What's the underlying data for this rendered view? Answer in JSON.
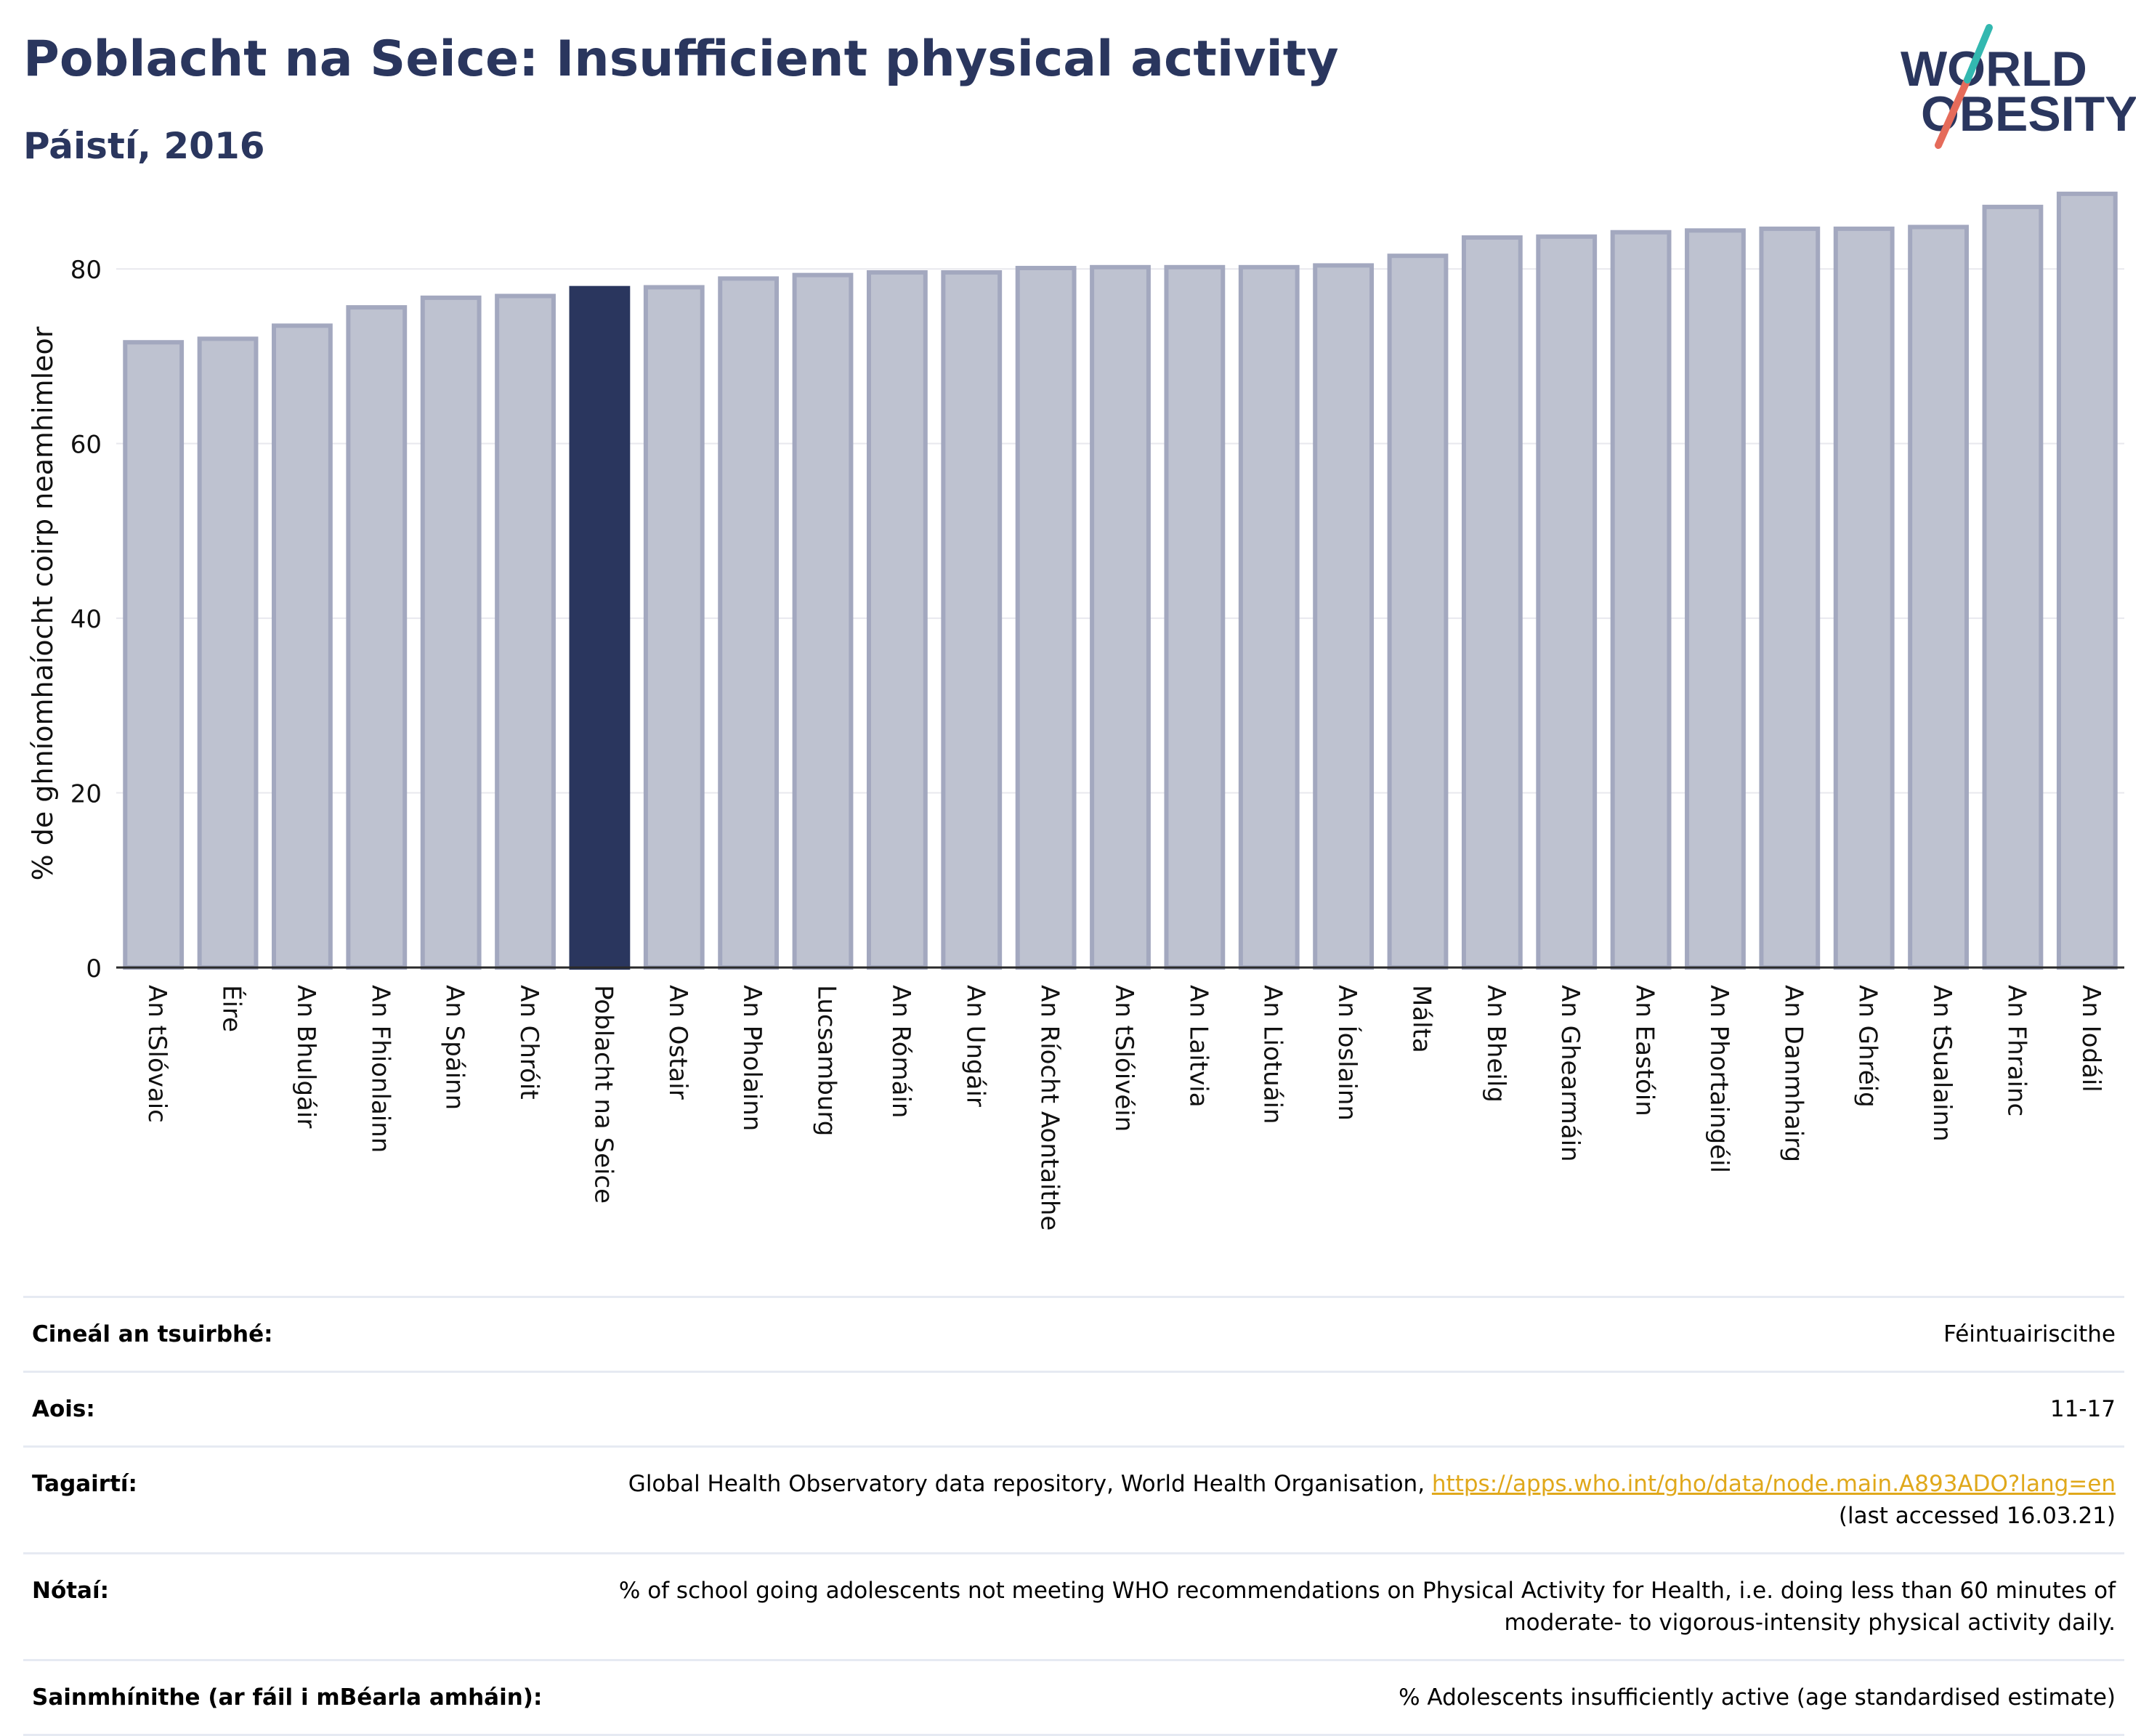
{
  "header": {
    "title": "Poblacht na Seice: Insufficient physical activity",
    "subtitle": "Páistí, 2016"
  },
  "logo": {
    "line1": "WORLD",
    "line2": "OBESITY"
  },
  "colors": {
    "highlight": "#2a365e",
    "bar": "#bec2d0",
    "bar_edge": "#a3a8bf",
    "text_dark": "#2a365e",
    "link": "#e0a81b"
  },
  "chart_data": {
    "type": "bar",
    "ylabel": "% de ghníomhaíocht coirp neamhimleor",
    "ylim": [
      0,
      90
    ],
    "yticks": [
      0,
      20,
      40,
      60,
      80
    ],
    "grid": true,
    "highlight": "Poblacht na Seice",
    "categories": [
      "An tSlóvaic",
      "Éire",
      "An Bhulgáir",
      "An Fhionlainn",
      "An Spáinn",
      "An Chróit",
      "Poblacht na Seice",
      "An Ostair",
      "An Pholainn",
      "Lucsamburg",
      "An Rómáin",
      "An Ungáir",
      "An Ríocht Aontaithe",
      "An tSlóivéin",
      "An Laitvia",
      "An Liotuáin",
      "An Íoslainn",
      "Málta",
      "An Bheilg",
      "An Ghearmáin",
      "An Eastóin",
      "An Phortaingéil",
      "An Danmhairg",
      "An Ghréig",
      "An tSualainn",
      "An Fhrainc",
      "An Iodáil"
    ],
    "values": [
      71.6,
      72.0,
      73.5,
      75.6,
      76.7,
      76.9,
      77.8,
      77.9,
      78.9,
      79.3,
      79.6,
      79.6,
      80.1,
      80.2,
      80.2,
      80.2,
      80.4,
      81.5,
      83.6,
      83.7,
      84.2,
      84.4,
      84.6,
      84.6,
      84.8,
      87.1,
      88.6
    ]
  },
  "info": [
    {
      "key": "Cineál an tsuirbhé:",
      "value": "Féintuairiscithe"
    },
    {
      "key": "Aois:",
      "value": "11-17"
    },
    {
      "key": "Tagairtí:",
      "value": "Global Health Observatory data repository, World Health Organisation,",
      "link": "https://apps.who.int/gho/data/node.main.A893ADO?lang=en",
      "value2": "(last accessed 16.03.21)"
    },
    {
      "key": "Nótaí:",
      "value": "% of school going adolescents not meeting WHO recommendations on Physical Activity for Health, i.e. doing less than 60 minutes of",
      "value2": "moderate- to vigorous-intensity physical activity daily."
    },
    {
      "key": "Sainmhínithe (ar fáil i mBéarla amháin):",
      "value": "% Adolescents insufficiently active (age standardised estimate)"
    }
  ]
}
